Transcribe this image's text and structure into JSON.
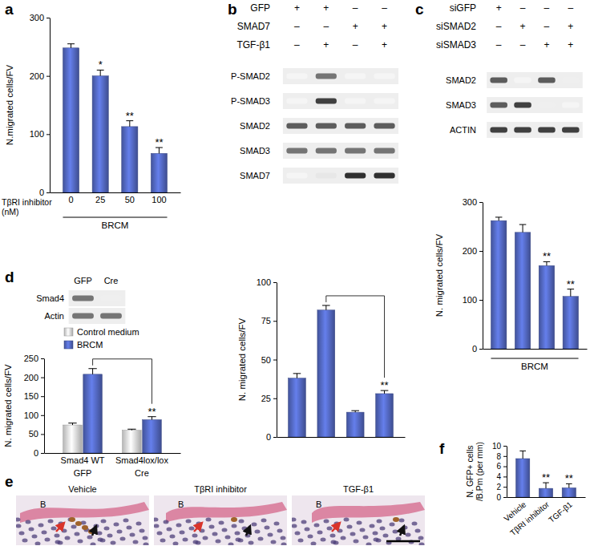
{
  "chart_data": [
    {
      "type": "bar",
      "panel": "a",
      "ylabel": [
        "N.migrated cells/FV"
      ],
      "xlabel": [
        "TβRI inhibitor",
        "(nM)"
      ],
      "group_label": "BRCM",
      "categories": [
        "0",
        "25",
        "50",
        "100"
      ],
      "values": [
        248,
        200,
        113,
        67
      ],
      "errors": [
        7,
        10,
        10,
        10
      ],
      "significance": [
        null,
        "*",
        "**",
        "**"
      ],
      "color": "#4f63b8",
      "ylim": [
        0,
        300
      ],
      "yticks": [
        0,
        100,
        200,
        300
      ]
    },
    {
      "type": "bar",
      "panel": "b",
      "ylabel": [
        "N. migrated cells/FV"
      ],
      "categories": [
        null,
        null,
        null,
        null
      ],
      "values": [
        38,
        82,
        16,
        28
      ],
      "errors": [
        3,
        3,
        1,
        2
      ],
      "significance": [
        null,
        null,
        null,
        "**"
      ],
      "comparisons": [
        [
          1,
          3
        ]
      ],
      "color": "#4f63b8",
      "ylim": [
        0,
        100
      ],
      "yticks": [
        0,
        25,
        50,
        75,
        100
      ]
    },
    {
      "type": "bar",
      "panel": "c",
      "ylabel": [
        "N. migrated cells/FV"
      ],
      "group_label": "BRCM",
      "categories": [
        null,
        null,
        null,
        null
      ],
      "values": [
        262,
        238,
        170,
        107
      ],
      "errors": [
        7,
        16,
        8,
        15
      ],
      "significance": [
        null,
        null,
        "**",
        "**"
      ],
      "color": "#4f63b8",
      "ylim": [
        0,
        300
      ],
      "yticks": [
        0,
        100,
        200,
        300
      ]
    },
    {
      "type": "bar",
      "panel": "d",
      "ylabel": [
        "N. migrated cells/FV"
      ],
      "categories": [
        "Smad4 WT",
        "Smad4lox/lox"
      ],
      "category_sublabels": [
        "GFP",
        "Cre"
      ],
      "series": [
        {
          "name": "Control medium",
          "color": "#d9d9d9",
          "values": [
            74,
            60
          ],
          "errors": [
            5,
            3
          ]
        },
        {
          "name": "BRCM",
          "color": "#4f63b8",
          "values": [
            208,
            88
          ],
          "errors": [
            15,
            8
          ],
          "significance": [
            null,
            "**"
          ],
          "comparisons": [
            [
              0,
              1
            ]
          ]
        }
      ],
      "legend": "top-left",
      "ylim": [
        0,
        250
      ],
      "yticks": [
        0,
        50,
        100,
        150,
        200,
        250
      ]
    },
    {
      "type": "bar",
      "panel": "f",
      "ylabel": [
        "N. GFP+ cells",
        "/B.Pm (per mm)"
      ],
      "categories": [
        "Vehicle",
        "TβRI inhibitor",
        "TGF-β1"
      ],
      "values": [
        7.5,
        1.7,
        1.8
      ],
      "errors": [
        1.5,
        1.1,
        0.8
      ],
      "significance": [
        null,
        "**",
        "**"
      ],
      "color": "#4f63b8",
      "ylim": [
        0,
        10
      ],
      "yticks": [
        0,
        2,
        4,
        6,
        8,
        10
      ]
    }
  ],
  "blots": [
    {
      "conditions": [
        {
          "label": "GFP",
          "signs": [
            "+",
            "+",
            "–",
            "–"
          ]
        },
        {
          "label": "SMAD7",
          "signs": [
            "–",
            "–",
            "+",
            "+"
          ]
        },
        {
          "label": "TGF-β1",
          "signs": [
            "–",
            "+",
            "–",
            "+"
          ]
        }
      ],
      "bands": [
        {
          "label": "P-SMAD2",
          "intensity": [
            0,
            0.6,
            0,
            0
          ]
        },
        {
          "label": "P-SMAD3",
          "intensity": [
            0,
            0.8,
            0,
            0
          ]
        },
        {
          "label": "SMAD2",
          "intensity": [
            0.7,
            0.7,
            0.7,
            0.7
          ]
        },
        {
          "label": "SMAD3",
          "intensity": [
            0.6,
            0.6,
            0.6,
            0.6
          ]
        },
        {
          "label": "SMAD7",
          "intensity": [
            0,
            0.1,
            0.85,
            0.85
          ]
        }
      ]
    },
    {
      "conditions": [
        {
          "label": "siGFP",
          "signs": [
            "+",
            "–",
            "–",
            "–"
          ]
        },
        {
          "label": "siSMAD2",
          "signs": [
            "–",
            "+",
            "–",
            "+"
          ]
        },
        {
          "label": "siSMAD3",
          "signs": [
            "–",
            "–",
            "+",
            "+"
          ]
        }
      ],
      "bands": [
        {
          "label": "SMAD2",
          "intensity": [
            0.7,
            0,
            0.7,
            0.05
          ]
        },
        {
          "label": "SMAD3",
          "intensity": [
            0.7,
            0.8,
            0.05,
            0
          ]
        },
        {
          "label": "ACTIN",
          "intensity": [
            0.8,
            0.8,
            0.8,
            0.8
          ]
        }
      ]
    },
    {
      "lanes": [
        "GFP",
        "Cre"
      ],
      "bands": [
        {
          "label": "Smad4",
          "intensity": [
            0.6,
            0.05
          ]
        },
        {
          "label": "Actin",
          "intensity": [
            0.6,
            0.6
          ]
        }
      ]
    }
  ],
  "images": {
    "panel": "e",
    "items": [
      {
        "title": "Vehicle",
        "labels": [
          "B"
        ]
      },
      {
        "title": "TβRI inhibitor",
        "labels": [
          "B"
        ]
      },
      {
        "title": "TGF-β1",
        "labels": [
          "B"
        ]
      }
    ]
  }
}
